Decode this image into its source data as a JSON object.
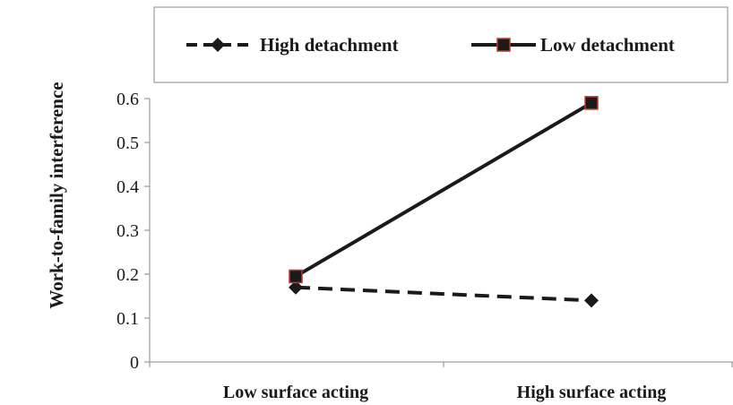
{
  "chart_data": {
    "type": "line",
    "categories": [
      "Low surface acting",
      "High surface acting"
    ],
    "series": [
      {
        "name": "High detachment",
        "values": [
          0.17,
          0.14
        ],
        "line_style": "dashed",
        "marker": "diamond",
        "color": "#1a1a1a"
      },
      {
        "name": "Low detachment",
        "values": [
          0.195,
          0.59
        ],
        "line_style": "solid",
        "marker": "square",
        "color": "#1a1a1a",
        "marker_outline": "#c0392b"
      }
    ],
    "ylabel": "Work-to-family interference",
    "xlabel": "",
    "ylim": [
      0,
      0.6
    ],
    "yticks": [
      "0",
      "0.1",
      "0.2",
      "0.3",
      "0.4",
      "0.5",
      "0.6"
    ],
    "grid": false,
    "legend_position": "top"
  }
}
